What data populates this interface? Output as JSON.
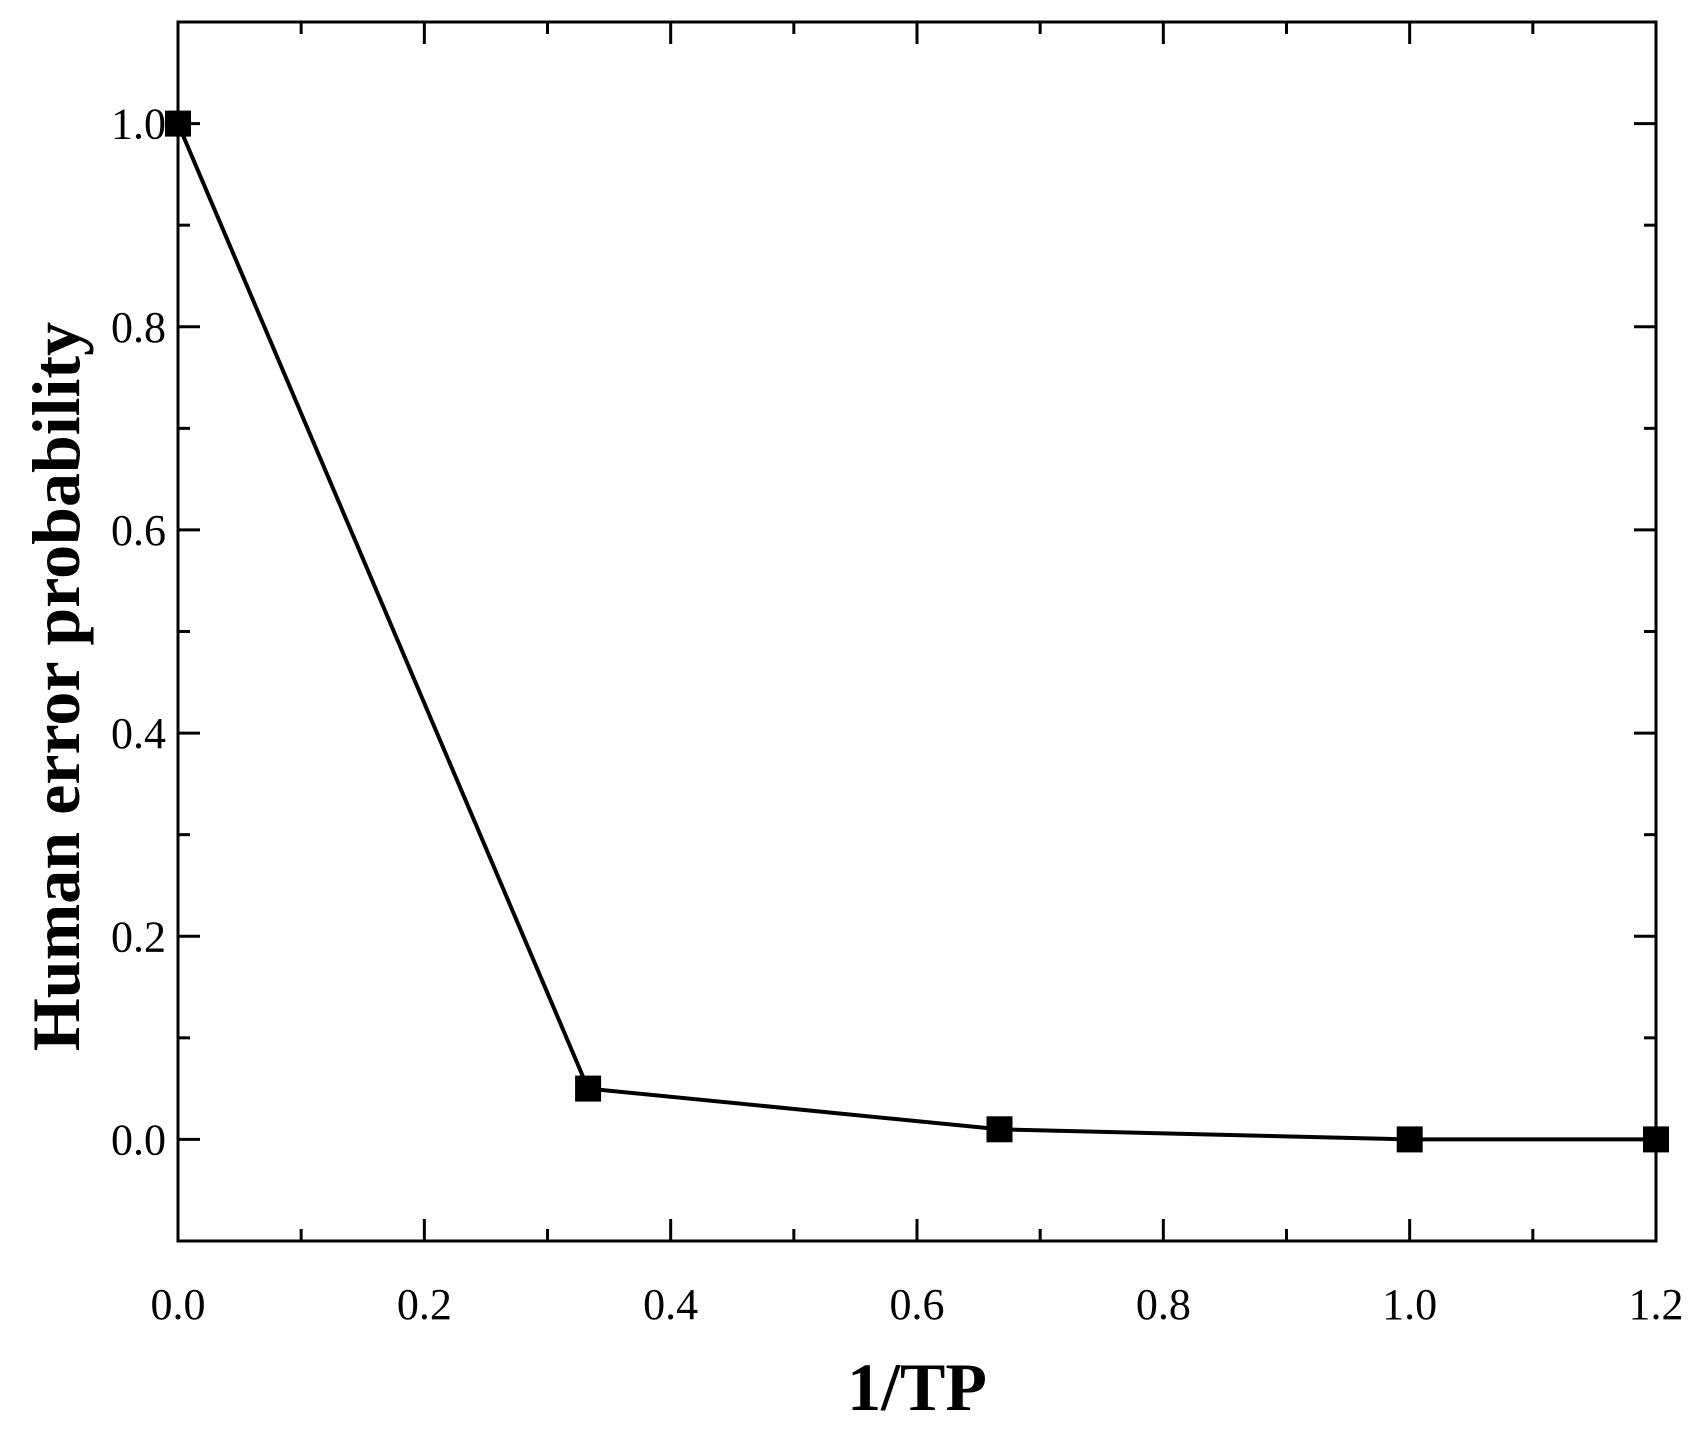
{
  "chart_data": {
    "type": "line",
    "title": "",
    "xlabel": "1/TP",
    "ylabel": "Human error probability",
    "xlim": [
      0.0,
      1.2
    ],
    "ylim": [
      -0.1,
      1.1
    ],
    "x_ticks": [
      0.0,
      0.2,
      0.4,
      0.6,
      0.8,
      1.0,
      1.2
    ],
    "x_tick_labels": [
      "0.0",
      "0.2",
      "0.4",
      "0.6",
      "0.8",
      "1.0",
      "1.2"
    ],
    "y_ticks": [
      0.0,
      0.2,
      0.4,
      0.6,
      0.8,
      1.0
    ],
    "y_tick_labels": [
      "0.0",
      "0.2",
      "0.4",
      "0.6",
      "0.8",
      "1.0"
    ],
    "x_minor_step": 0.1,
    "y_minor_step": 0.1,
    "grid": false,
    "legend": "none",
    "marker": "square",
    "colors": {
      "line": "#000000",
      "marker": "#000000",
      "frame": "#000000"
    },
    "series": [
      {
        "x": [
          0.0,
          0.333,
          0.667,
          1.0,
          1.2
        ],
        "y": [
          1.0,
          0.05,
          0.01,
          0.0,
          0.0
        ]
      }
    ]
  }
}
